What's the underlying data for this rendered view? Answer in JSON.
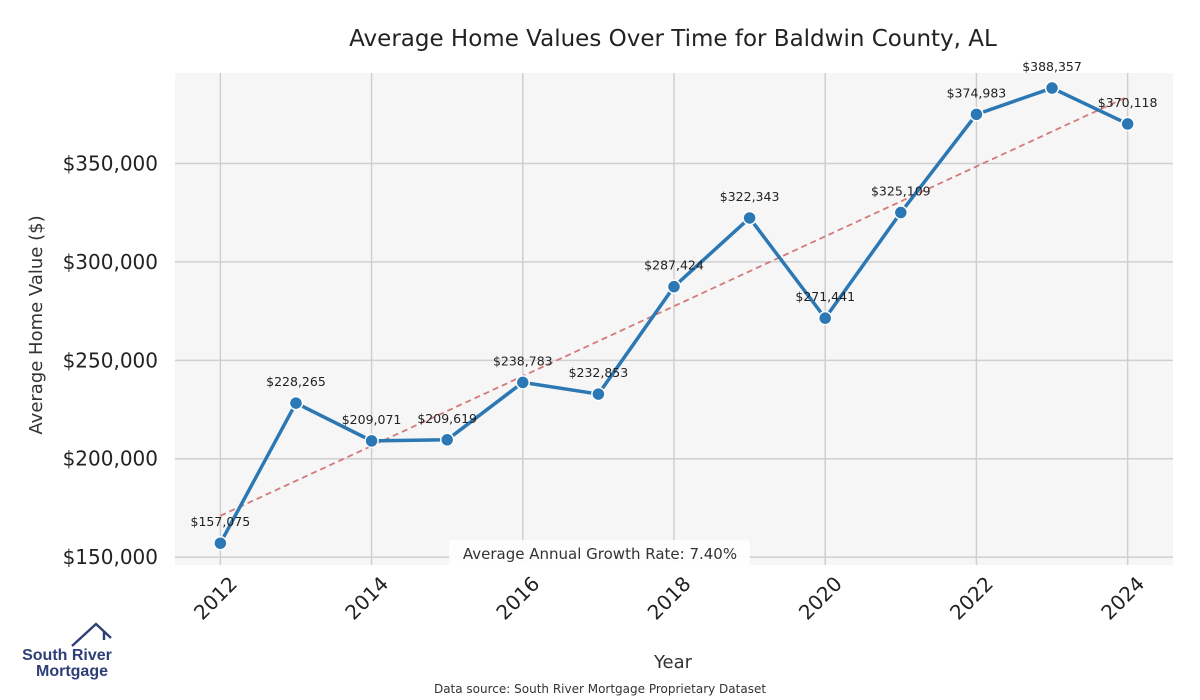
{
  "chart_data": {
    "type": "line",
    "title": "Average Home Values Over Time for Baldwin County, AL",
    "xlabel": "Year",
    "ylabel": "Average Home Value ($)",
    "x": [
      2012,
      2013,
      2014,
      2015,
      2016,
      2017,
      2018,
      2019,
      2020,
      2021,
      2022,
      2023,
      2024
    ],
    "series": [
      {
        "values": [
          157075,
          228265,
          209071,
          209619,
          238783,
          232853,
          287424,
          322343,
          271441,
          325109,
          374983,
          388357,
          370118
        ],
        "labels": [
          "$157,075",
          "$228,265",
          "$209,071",
          "$209,619",
          "$238,783",
          "$232,853",
          "$287,424",
          "$322,343",
          "$271,441",
          "$325,109",
          "$374,983",
          "$388,357",
          "$370,118"
        ],
        "color": "#2b78b4"
      }
    ],
    "trendline": {
      "start": [
        2012,
        171000
      ],
      "end": [
        2024,
        384000
      ],
      "color": "#d47a7a",
      "style": "dashed"
    },
    "x_ticks": [
      "2012",
      "2014",
      "2016",
      "2018",
      "2020",
      "2022",
      "2024"
    ],
    "y_ticks": [
      "$150,000",
      "$200,000",
      "$250,000",
      "$300,000",
      "$350,000"
    ],
    "y_tick_values": [
      150000,
      200000,
      250000,
      300000,
      350000
    ],
    "xlim": [
      2011.4,
      2024.6
    ],
    "ylim": [
      146000,
      396000
    ],
    "grid": true,
    "annotation": "Average Annual Growth Rate: 7.40%"
  },
  "footer": {
    "source": "Data source: South River Mortgage Proprietary Dataset"
  },
  "logo": {
    "line1": "South River",
    "line2": "Mortgage",
    "color": "#2e3f78"
  }
}
